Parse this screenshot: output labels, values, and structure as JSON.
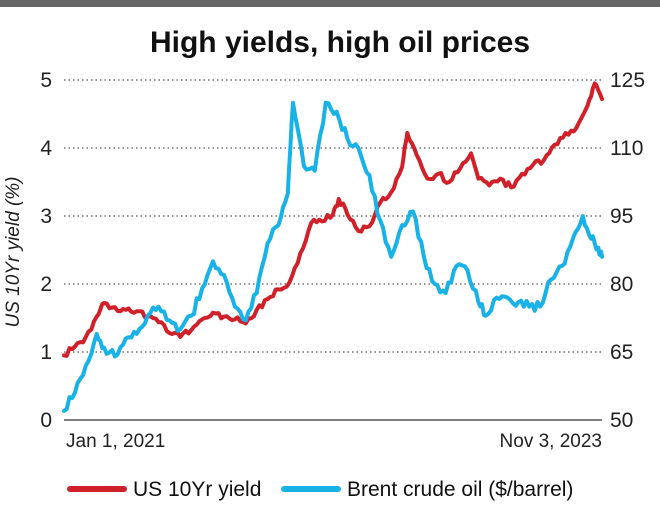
{
  "chart_data": {
    "type": "line",
    "title": "High yields, high oil prices",
    "ylabel": "US 10Yr yield (%)",
    "x_start_label": "Jan 1, 2021",
    "x_end_label": "Nov 3, 2023",
    "x_range": [
      "2021-01-01",
      "2023-11-03"
    ],
    "ylim_left": [
      0,
      5
    ],
    "ylim_right": [
      50,
      125
    ],
    "left_ticks": [
      "0",
      "1",
      "2",
      "3",
      "4",
      "5"
    ],
    "right_ticks": [
      "50",
      "65",
      "80",
      "95",
      "110",
      "125"
    ],
    "grid": "dotted horizontal",
    "legend_position": "bottom",
    "series": [
      {
        "name": "US 10Yr yield",
        "axis": "left",
        "color": "#d0202a",
        "x": [
          "2021-01-01",
          "2021-01-22",
          "2021-02-12",
          "2021-03-05",
          "2021-03-19",
          "2021-04-09",
          "2021-04-30",
          "2021-05-21",
          "2021-06-11",
          "2021-07-02",
          "2021-07-23",
          "2021-08-13",
          "2021-09-03",
          "2021-09-24",
          "2021-10-15",
          "2021-11-05",
          "2021-11-26",
          "2021-12-17",
          "2022-01-07",
          "2022-01-28",
          "2022-02-18",
          "2022-03-11",
          "2022-04-01",
          "2022-04-22",
          "2022-05-13",
          "2022-06-03",
          "2022-06-14",
          "2022-07-01",
          "2022-07-22",
          "2022-08-12",
          "2022-09-02",
          "2022-09-23",
          "2022-10-14",
          "2022-10-24",
          "2022-11-11",
          "2022-12-02",
          "2022-12-23",
          "2023-01-13",
          "2023-02-03",
          "2023-02-24",
          "2023-03-10",
          "2023-03-31",
          "2023-04-21",
          "2023-05-12",
          "2023-06-02",
          "2023-06-23",
          "2023-07-14",
          "2023-08-04",
          "2023-08-25",
          "2023-09-15",
          "2023-10-06",
          "2023-10-20",
          "2023-11-03"
        ],
        "values": [
          0.95,
          1.08,
          1.22,
          1.52,
          1.72,
          1.66,
          1.62,
          1.6,
          1.52,
          1.44,
          1.28,
          1.22,
          1.32,
          1.48,
          1.58,
          1.52,
          1.48,
          1.42,
          1.62,
          1.78,
          1.92,
          2.02,
          2.45,
          2.9,
          2.92,
          3.02,
          3.25,
          3.02,
          2.78,
          2.85,
          3.2,
          3.35,
          3.72,
          4.22,
          3.9,
          3.55,
          3.62,
          3.5,
          3.7,
          3.92,
          3.55,
          3.45,
          3.55,
          3.42,
          3.62,
          3.75,
          3.82,
          4.05,
          4.22,
          4.3,
          4.62,
          4.95,
          4.72
        ]
      },
      {
        "name": "Brent crude oil ($/barrel)",
        "axis": "right",
        "color": "#19b2e6",
        "x": [
          "2021-01-01",
          "2021-01-22",
          "2021-02-12",
          "2021-03-05",
          "2021-03-19",
          "2021-04-09",
          "2021-04-30",
          "2021-05-21",
          "2021-06-11",
          "2021-07-02",
          "2021-07-23",
          "2021-08-13",
          "2021-09-03",
          "2021-09-24",
          "2021-10-15",
          "2021-11-05",
          "2021-11-26",
          "2021-12-17",
          "2022-01-07",
          "2022-01-28",
          "2022-02-18",
          "2022-03-08",
          "2022-03-18",
          "2022-04-08",
          "2022-04-29",
          "2022-05-20",
          "2022-06-10",
          "2022-07-01",
          "2022-07-22",
          "2022-08-12",
          "2022-09-02",
          "2022-09-23",
          "2022-10-14",
          "2022-11-04",
          "2022-11-25",
          "2022-12-16",
          "2023-01-06",
          "2023-01-27",
          "2023-02-17",
          "2023-03-10",
          "2023-03-24",
          "2023-04-14",
          "2023-05-05",
          "2023-05-26",
          "2023-06-16",
          "2023-07-07",
          "2023-07-28",
          "2023-08-18",
          "2023-09-08",
          "2023-09-27",
          "2023-10-13",
          "2023-10-27",
          "2023-11-03"
        ],
        "values": [
          52,
          56,
          62,
          69,
          66,
          64,
          68,
          69,
          73,
          75,
          72,
          70,
          73,
          79,
          85,
          82,
          75,
          72,
          78,
          89,
          93,
          100,
          120,
          106,
          105,
          120,
          118,
          112,
          110,
          104,
          94,
          86,
          93,
          96,
          86,
          80,
          78,
          84,
          83,
          76,
          73,
          77,
          77,
          76,
          75,
          75,
          81,
          84,
          90,
          95,
          90,
          88,
          86
        ]
      }
    ]
  }
}
